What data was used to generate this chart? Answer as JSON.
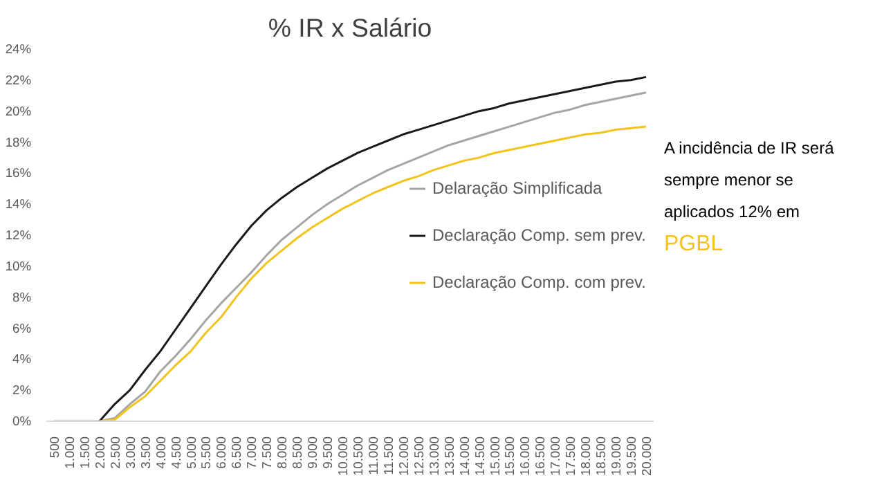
{
  "chart_data": {
    "type": "line",
    "title": "% IR x Salário",
    "categories": [
      "500",
      "1.000",
      "1.500",
      "2.000",
      "2.500",
      "3.000",
      "3.500",
      "4.000",
      "4.500",
      "5.000",
      "5.500",
      "6.000",
      "6.500",
      "7.000",
      "7.500",
      "8.000",
      "8.500",
      "9.000",
      "9.500",
      "10.000",
      "10.500",
      "11.000",
      "11.500",
      "12.000",
      "12.500",
      "13.000",
      "13.500",
      "14.000",
      "14.500",
      "15.000",
      "15.500",
      "16.000",
      "16.500",
      "17.000",
      "17.500",
      "18.000",
      "18.500",
      "19.000",
      "19.500",
      "20.000"
    ],
    "series": [
      {
        "name": "Delaração Simplificada",
        "color": "#a5a5a5",
        "values": [
          0,
          0,
          0,
          0,
          0.2,
          1.1,
          1.9,
          3.2,
          4.2,
          5.3,
          6.5,
          7.6,
          8.6,
          9.6,
          10.7,
          11.7,
          12.5,
          13.3,
          14.0,
          14.6,
          15.2,
          15.7,
          16.2,
          16.6,
          17.0,
          17.4,
          17.8,
          18.1,
          18.4,
          18.7,
          19.0,
          19.3,
          19.6,
          19.9,
          20.1,
          20.4,
          20.6,
          20.8,
          21.0,
          21.2
        ]
      },
      {
        "name": "Declaração Comp. sem prev.",
        "color": "#1a1a1a",
        "values": [
          null,
          null,
          null,
          0,
          1.1,
          2.0,
          3.3,
          4.5,
          5.9,
          7.3,
          8.7,
          10.1,
          11.4,
          12.6,
          13.6,
          14.4,
          15.1,
          15.7,
          16.3,
          16.8,
          17.3,
          17.7,
          18.1,
          18.5,
          18.8,
          19.1,
          19.4,
          19.7,
          20.0,
          20.2,
          20.5,
          20.7,
          20.9,
          21.1,
          21.3,
          21.5,
          21.7,
          21.9,
          22.0,
          22.2
        ]
      },
      {
        "name": "Declaração Comp. com prev.",
        "color": "#f2c318",
        "values": [
          null,
          null,
          null,
          0,
          0.1,
          0.9,
          1.6,
          2.6,
          3.6,
          4.5,
          5.7,
          6.7,
          8.0,
          9.2,
          10.2,
          11.0,
          11.8,
          12.5,
          13.1,
          13.7,
          14.2,
          14.7,
          15.1,
          15.5,
          15.8,
          16.2,
          16.5,
          16.8,
          17.0,
          17.3,
          17.5,
          17.7,
          17.9,
          18.1,
          18.3,
          18.5,
          18.6,
          18.8,
          18.9,
          19.0
        ]
      }
    ],
    "ylim": [
      0,
      24
    ],
    "yticks": [
      {
        "value": 0,
        "label": "0%"
      },
      {
        "value": 2,
        "label": "2%"
      },
      {
        "value": 4,
        "label": "4%"
      },
      {
        "value": 6,
        "label": "6%"
      },
      {
        "value": 8,
        "label": "8%"
      },
      {
        "value": 10,
        "label": "10%"
      },
      {
        "value": 12,
        "label": "12%"
      },
      {
        "value": 14,
        "label": "14%"
      },
      {
        "value": 16,
        "label": "16%"
      },
      {
        "value": 18,
        "label": "18%"
      },
      {
        "value": 20,
        "label": "20%"
      },
      {
        "value": 22,
        "label": "22%"
      },
      {
        "value": 24,
        "label": "24%"
      }
    ],
    "grid": false,
    "legend": "right",
    "marker": "none",
    "line_style": "solid",
    "annotations": [
      "A incidência de IR será",
      "sempre menor se",
      "aplicados 12% em",
      "PGBL"
    ]
  }
}
